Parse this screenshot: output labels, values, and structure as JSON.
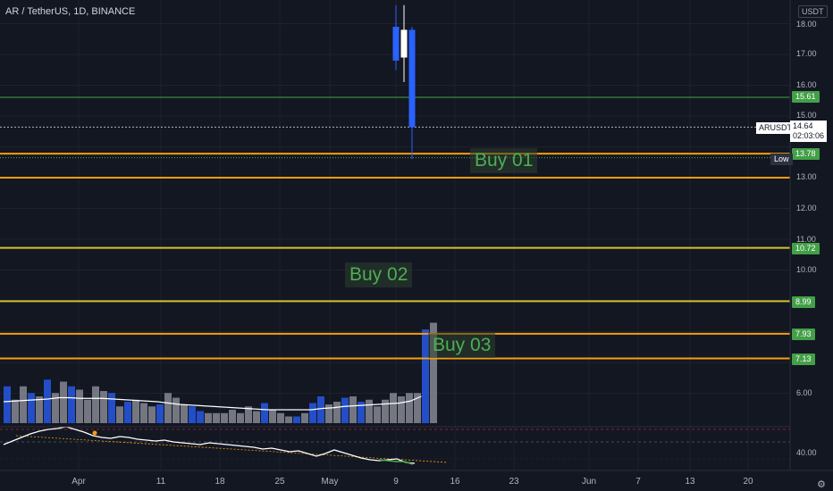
{
  "header": {
    "symbol_title": "AR / TetherUS, 1D, BINANCE",
    "currency": "USDT"
  },
  "price_axis": {
    "ticks": [
      "18.00",
      "17.00",
      "16.00",
      "15.00",
      "13.00",
      "12.00",
      "11.00",
      "10.00",
      "6.00"
    ],
    "indicator_tick": "40.00"
  },
  "time_axis": {
    "labels": [
      "Apr",
      "11",
      "18",
      "25",
      "May",
      "9",
      "16",
      "23",
      "Jun",
      "7",
      "13",
      "20"
    ]
  },
  "horizontal_levels": [
    {
      "price": 15.61,
      "label": "15.61",
      "color": "#43a047"
    },
    {
      "price": 13.78,
      "label": "13.78",
      "color": "#43a047"
    },
    {
      "price": 10.72,
      "label": "10.72",
      "color": "#43a047"
    },
    {
      "price": 8.99,
      "label": "8.99",
      "color": "#43a047"
    },
    {
      "price": 7.93,
      "label": "7.93",
      "color": "#43a047"
    },
    {
      "price": 7.13,
      "label": "7.13",
      "color": "#43a047"
    }
  ],
  "current_price": {
    "ticker": "ARUSDT",
    "price": "14.64",
    "countdown": "02:03:06"
  },
  "low_label": "Low",
  "annotations": {
    "buy_01": "Buy 01",
    "buy_02": "Buy 02",
    "buy_03": "Buy 03"
  },
  "colors": {
    "background": "#131722",
    "level_orange": "#f59d0c",
    "level_yellow": "#d4c22c",
    "level_green": "#43a047",
    "volume_blue": "#2962ff",
    "volume_gray": "#9598a1",
    "annotation_green": "#4caf50"
  },
  "chart_data": {
    "type": "candlestick",
    "candles": [
      {
        "open": 17.9,
        "high": 18.6,
        "low": 16.5,
        "close": 16.8
      },
      {
        "open": 16.9,
        "high": 18.6,
        "low": 16.1,
        "close": 17.8
      },
      {
        "open": 17.8,
        "high": 17.9,
        "low": 13.6,
        "close": 14.64
      }
    ],
    "volume_relative": [
      0.55,
      0.35,
      0.55,
      0.45,
      0.4,
      0.65,
      0.45,
      0.62,
      0.55,
      0.5,
      0.35,
      0.55,
      0.48,
      0.45,
      0.25,
      0.32,
      0.35,
      0.3,
      0.25,
      0.28,
      0.45,
      0.38,
      0.28,
      0.25,
      0.18,
      0.15,
      0.15,
      0.15,
      0.2,
      0.15,
      0.25,
      0.18,
      0.3,
      0.2,
      0.15,
      0.1,
      0.1,
      0.15,
      0.3,
      0.4,
      0.28,
      0.32,
      0.38,
      0.4,
      0.32,
      0.35,
      0.25,
      0.35,
      0.45,
      0.4,
      0.45,
      0.45,
      1.4,
      1.5
    ],
    "volume_colors": [
      "b",
      "g",
      "g",
      "b",
      "g",
      "b",
      "g",
      "g",
      "b",
      "g",
      "g",
      "g",
      "g",
      "b",
      "g",
      "b",
      "g",
      "g",
      "g",
      "b",
      "g",
      "g",
      "g",
      "b",
      "b",
      "g",
      "g",
      "g",
      "g",
      "g",
      "g",
      "g",
      "b",
      "g",
      "g",
      "g",
      "b",
      "g",
      "b",
      "b",
      "g",
      "g",
      "b",
      "g",
      "b",
      "g",
      "g",
      "g",
      "g",
      "g",
      "g",
      "g",
      "b",
      "g"
    ],
    "volume_ma_relative": [
      0.32,
      0.33,
      0.34,
      0.35,
      0.36,
      0.38,
      0.38,
      0.37,
      0.37,
      0.37,
      0.36,
      0.35,
      0.34,
      0.33,
      0.32,
      0.3,
      0.28,
      0.27,
      0.26,
      0.25,
      0.24,
      0.23,
      0.22,
      0.21,
      0.2,
      0.2,
      0.2,
      0.2,
      0.2,
      0.22,
      0.23,
      0.25,
      0.26,
      0.27,
      0.28,
      0.29,
      0.3,
      0.33,
      0.4
    ],
    "rsi": [
      30,
      34,
      38,
      42,
      45,
      47,
      48,
      50,
      47,
      44,
      40,
      38,
      37,
      39,
      38,
      36,
      35,
      34,
      35,
      33,
      32,
      31,
      30,
      32,
      31,
      30,
      29,
      28,
      27,
      25,
      26,
      24,
      22,
      23,
      20,
      17,
      20,
      24,
      21,
      18,
      15,
      13,
      12,
      13,
      14,
      10,
      9
    ],
    "rsi_tick": 40
  }
}
